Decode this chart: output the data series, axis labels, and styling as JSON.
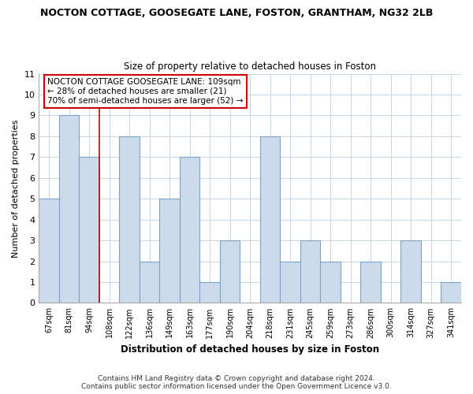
{
  "title": "NOCTON COTTAGE, GOOSEGATE LANE, FOSTON, GRANTHAM, NG32 2LB",
  "subtitle": "Size of property relative to detached houses in Foston",
  "xlabel": "Distribution of detached houses by size in Foston",
  "ylabel": "Number of detached properties",
  "categories": [
    "67sqm",
    "81sqm",
    "94sqm",
    "108sqm",
    "122sqm",
    "136sqm",
    "149sqm",
    "163sqm",
    "177sqm",
    "190sqm",
    "204sqm",
    "218sqm",
    "231sqm",
    "245sqm",
    "259sqm",
    "273sqm",
    "286sqm",
    "300sqm",
    "314sqm",
    "327sqm",
    "341sqm"
  ],
  "values": [
    5,
    9,
    7,
    0,
    8,
    2,
    5,
    7,
    1,
    3,
    0,
    8,
    2,
    3,
    2,
    0,
    2,
    0,
    3,
    0,
    1
  ],
  "bar_color": "#ccdaeb",
  "bar_edge_color": "#7ba3c8",
  "highlight_line_index": 3,
  "highlight_line_color": "#cc0000",
  "annotation_text": "NOCTON COTTAGE GOOSEGATE LANE: 109sqm\n← 28% of detached houses are smaller (21)\n70% of semi-detached houses are larger (52) →",
  "annotation_box_color": "#ffffff",
  "annotation_box_edge": "#cc0000",
  "ylim": [
    0,
    11
  ],
  "yticks": [
    0,
    1,
    2,
    3,
    4,
    5,
    6,
    7,
    8,
    9,
    10,
    11
  ],
  "footer_line1": "Contains HM Land Registry data © Crown copyright and database right 2024.",
  "footer_line2": "Contains public sector information licensed under the Open Government Licence v3.0.",
  "bg_color": "#ffffff",
  "grid_color": "#c5d5e8"
}
